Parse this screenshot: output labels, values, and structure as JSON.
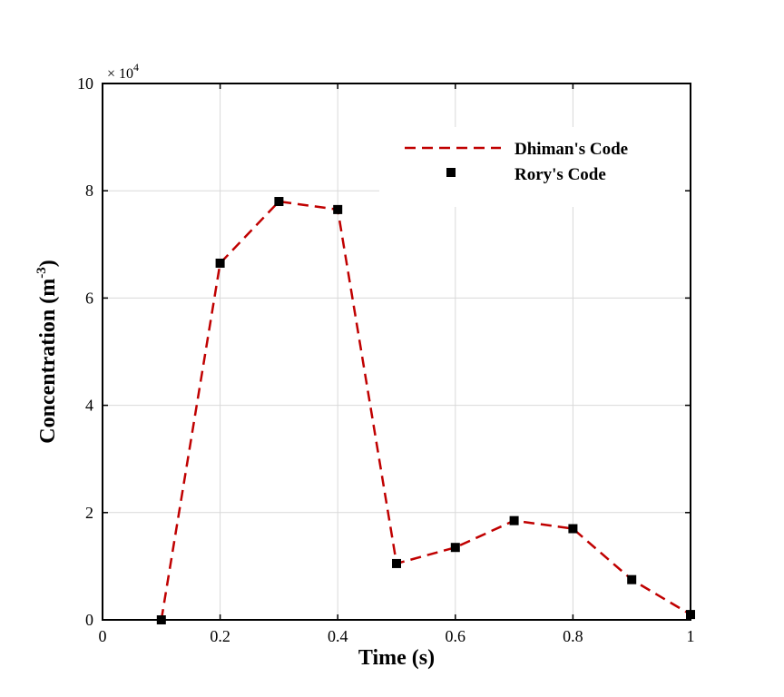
{
  "chart_data": {
    "type": "line",
    "xlabel": "Time (s)",
    "ylabel_main": "Concentration (m",
    "ylabel_sup": "-3",
    "ylabel_close": ")",
    "y_multiplier_prefix": "× 10",
    "y_multiplier_exp": "4",
    "xlim": [
      0,
      1
    ],
    "ylim": [
      0,
      10
    ],
    "x_ticks": [
      0,
      0.2,
      0.4,
      0.6,
      0.8,
      1
    ],
    "x_tick_labels": [
      "0",
      "0.2",
      "0.4",
      "0.6",
      "0.8",
      "1"
    ],
    "y_ticks": [
      0,
      2,
      4,
      6,
      8,
      10
    ],
    "y_tick_labels": [
      "0",
      "2",
      "4",
      "6",
      "8",
      "10"
    ],
    "grid": true,
    "legend_position": "top-right",
    "series": [
      {
        "name": "Dhiman's Code",
        "style": "dashed-line",
        "color": "#c00000",
        "x": [
          0.1,
          0.2,
          0.3,
          0.4,
          0.5,
          0.6,
          0.7,
          0.8,
          0.9,
          1.0
        ],
        "y": [
          0.0,
          6.65,
          7.8,
          7.65,
          1.05,
          1.35,
          1.85,
          1.7,
          0.75,
          0.1
        ]
      },
      {
        "name": "Rory's Code",
        "style": "square-markers",
        "color": "#000000",
        "x": [
          0.1,
          0.2,
          0.3,
          0.4,
          0.5,
          0.6,
          0.7,
          0.8,
          0.9,
          1.0
        ],
        "y": [
          0.0,
          6.65,
          7.8,
          7.65,
          1.05,
          1.35,
          1.85,
          1.7,
          0.75,
          0.1
        ]
      }
    ]
  }
}
